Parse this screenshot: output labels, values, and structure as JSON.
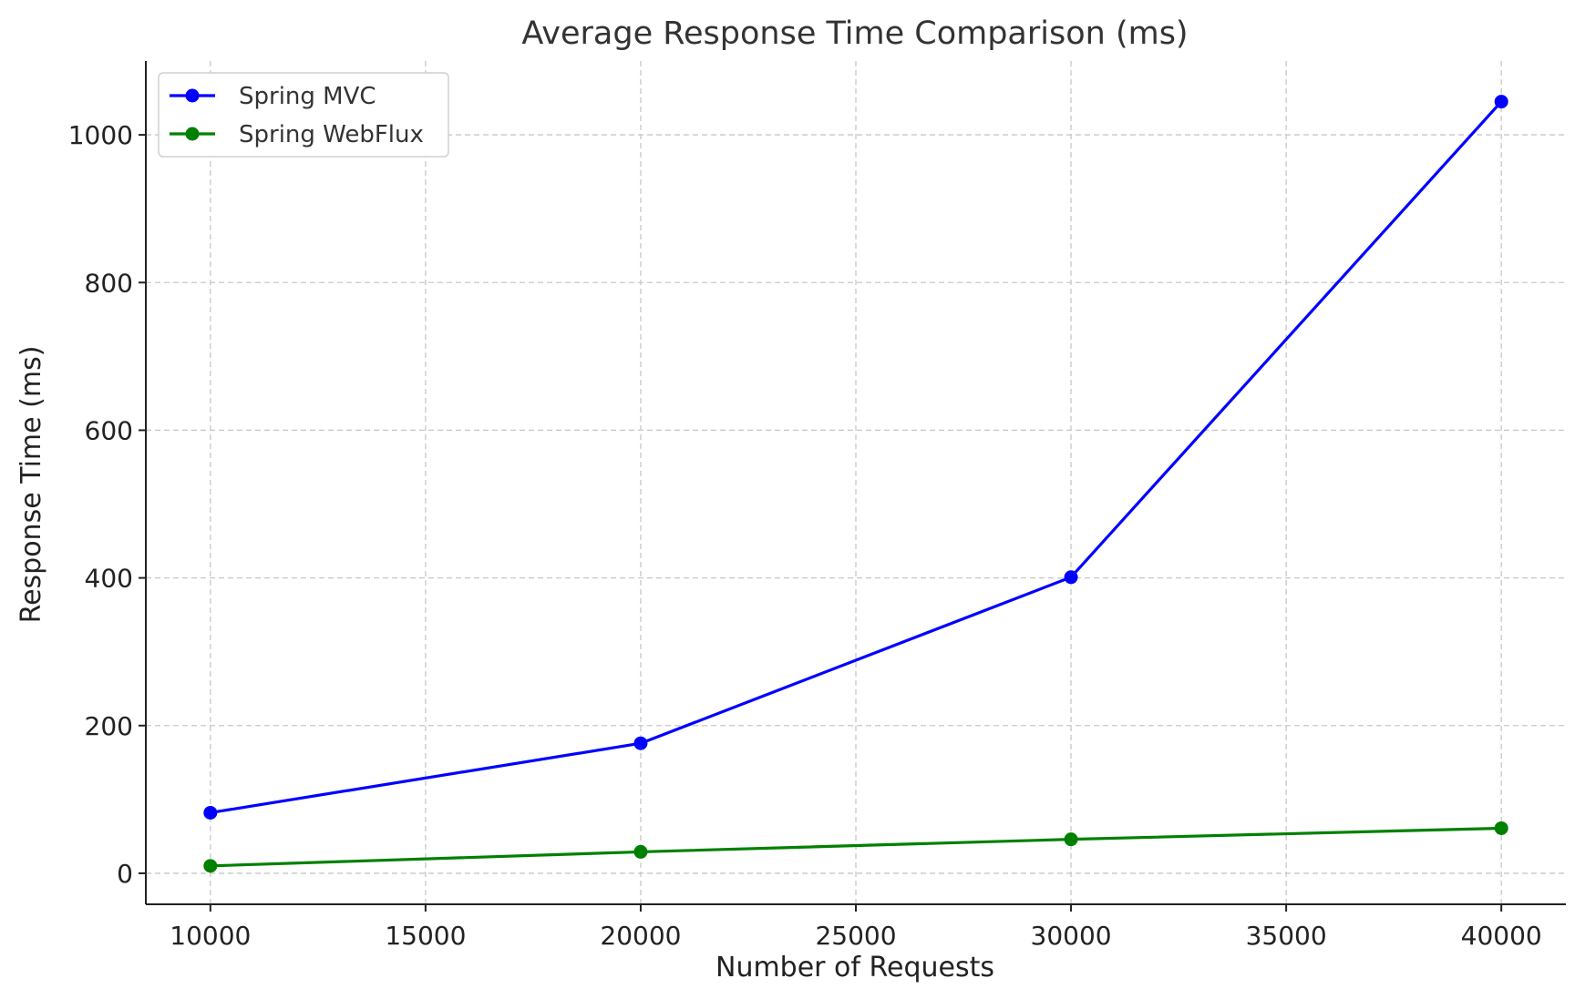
{
  "chart_data": {
    "type": "line",
    "title": "Average Response Time Comparison (ms)",
    "xlabel": "Number of Requests",
    "ylabel": "Response Time (ms)",
    "x": [
      10000,
      20000,
      30000,
      40000
    ],
    "xlim": [
      8500,
      41500
    ],
    "ylim": [
      -42,
      1100
    ],
    "xticks": [
      10000,
      15000,
      20000,
      25000,
      30000,
      35000,
      40000
    ],
    "yticks": [
      0,
      200,
      400,
      600,
      800,
      1000
    ],
    "grid": true,
    "legend_position": "top-left",
    "series": [
      {
        "name": "Spring MVC",
        "color": "#0000ff",
        "marker": "circle",
        "values": [
          82,
          176,
          401,
          1045
        ]
      },
      {
        "name": "Spring WebFlux",
        "color": "#008000",
        "marker": "circle",
        "values": [
          10,
          29,
          46,
          61
        ]
      }
    ]
  }
}
